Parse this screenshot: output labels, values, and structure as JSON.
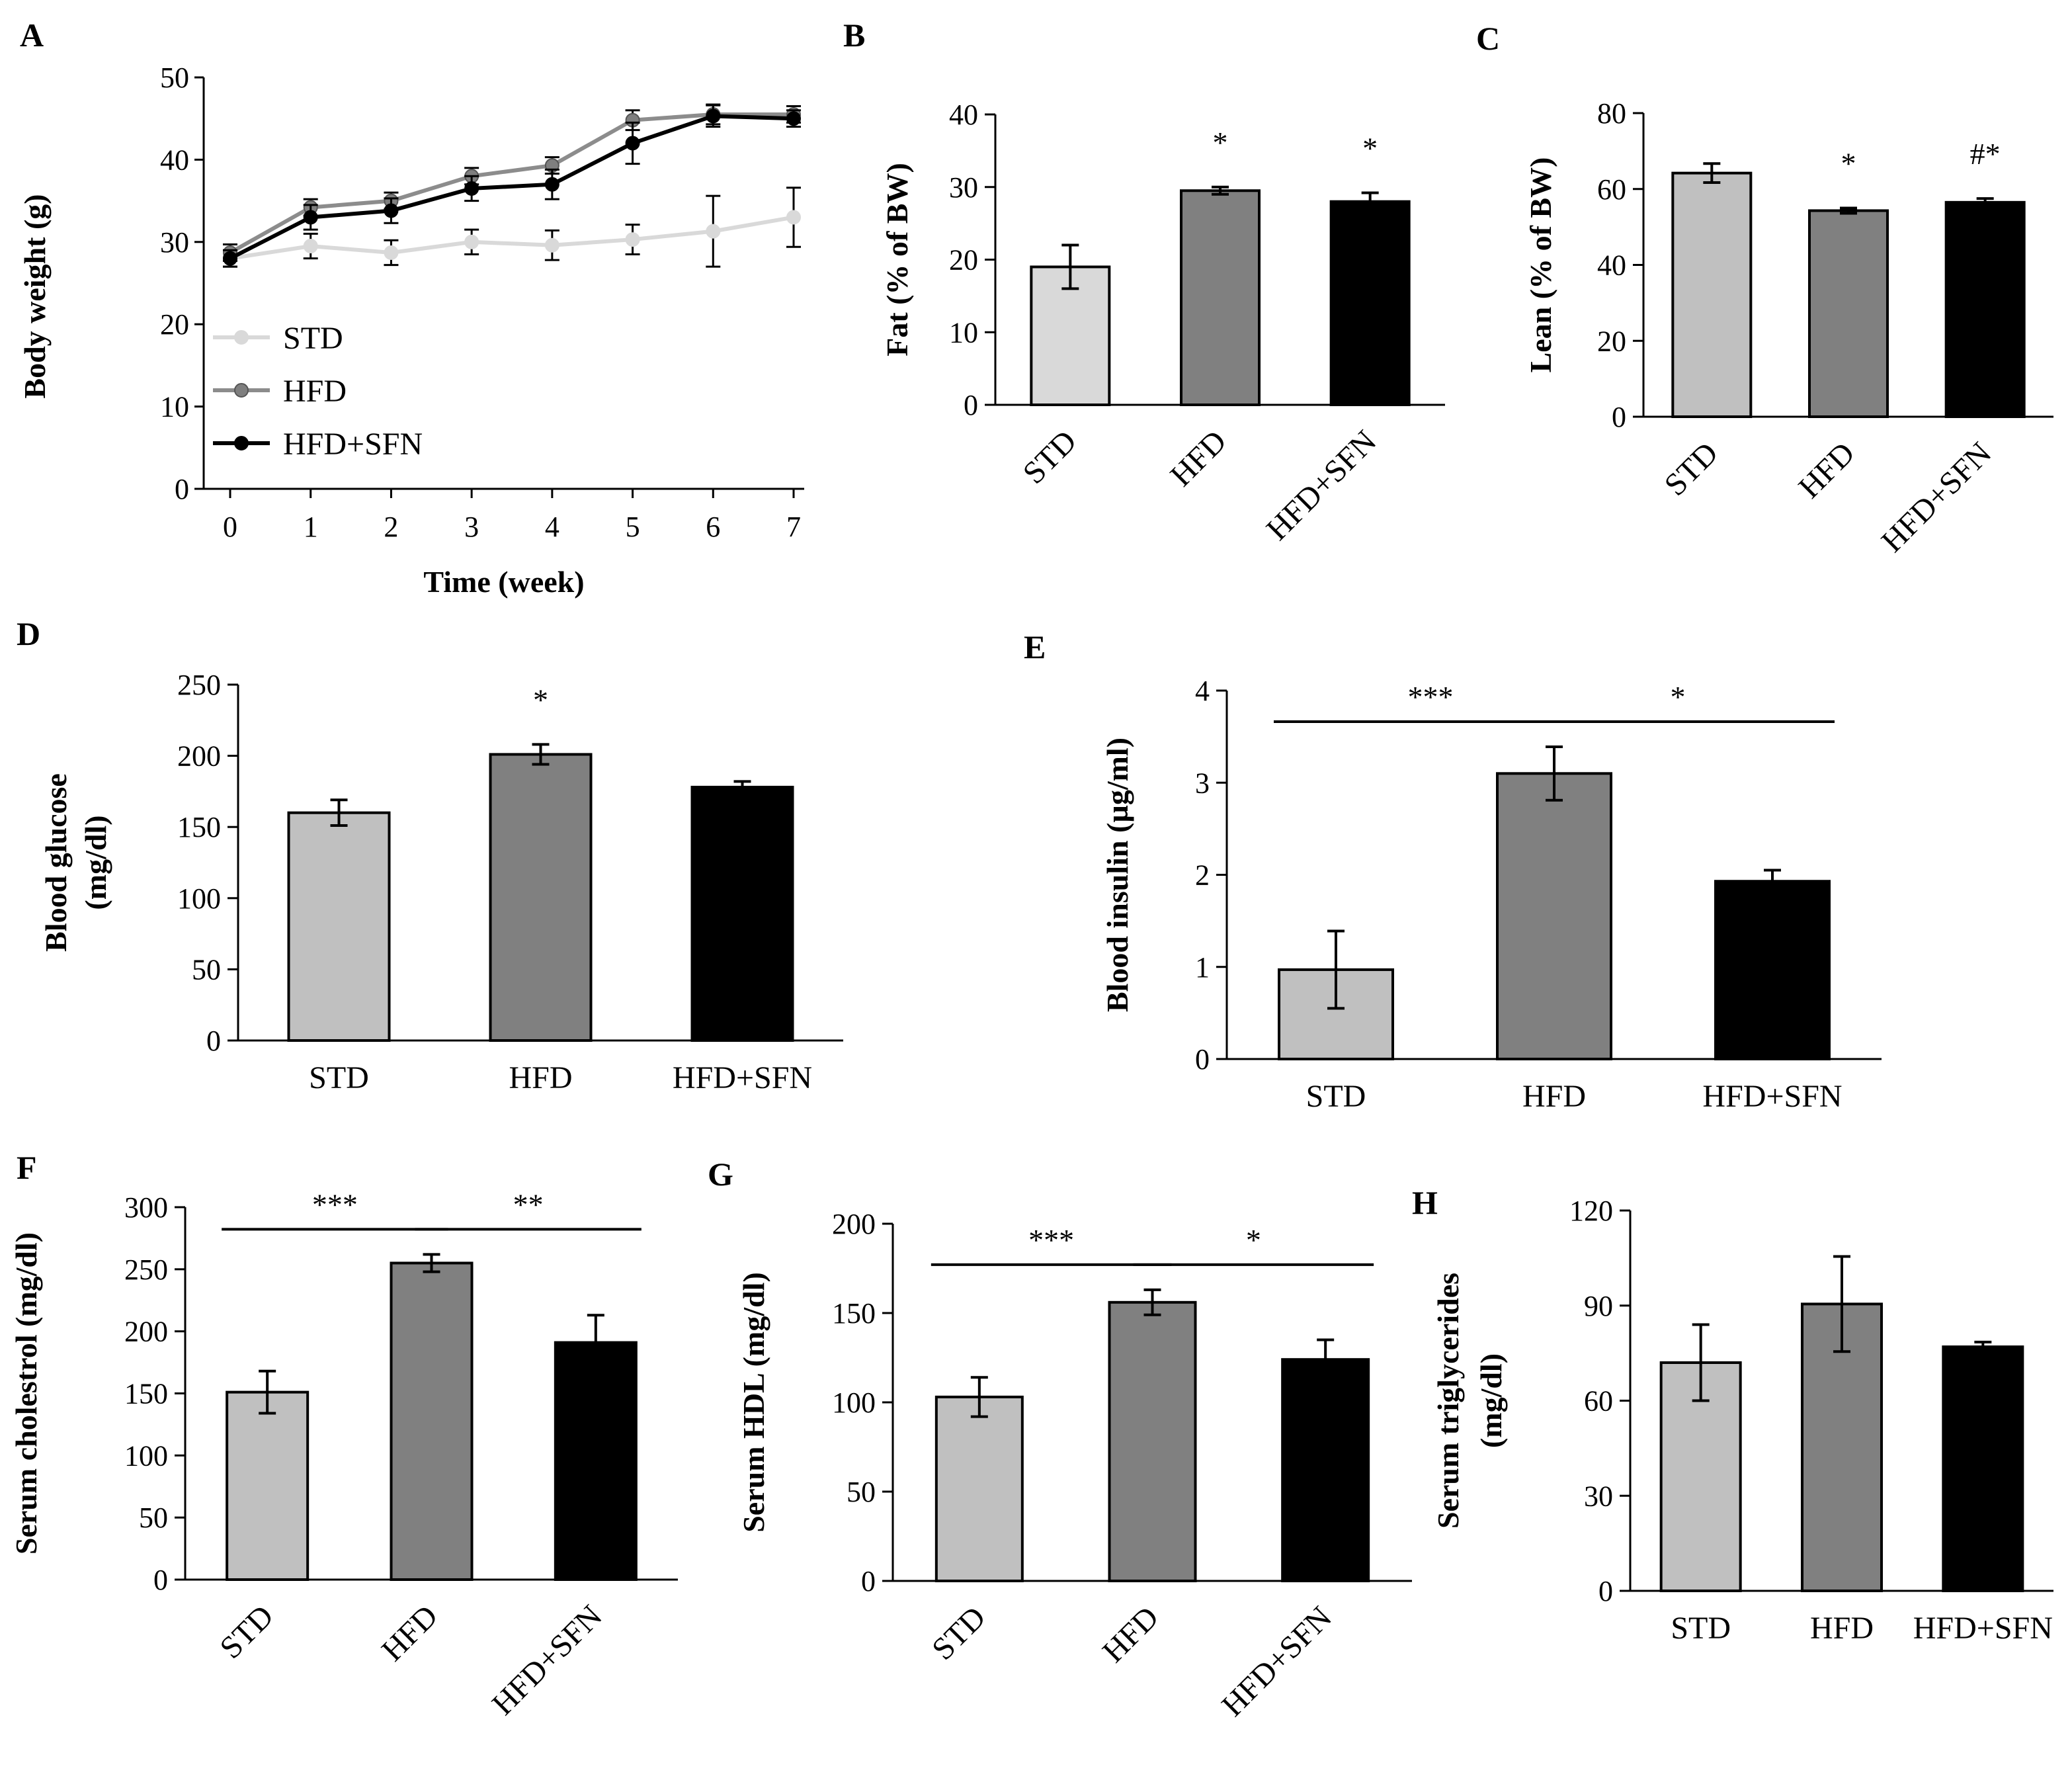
{
  "colors": {
    "STD": "#c0c0c0",
    "HFD": "#808080",
    "HFD+SFN": "#000000",
    "STD_line": "#d9d9d9",
    "HFD_line": "#8c8c8c",
    "HFD+SFN_line": "#000000",
    "STD_fill_B": "#d9d9d9"
  },
  "chart_data": [
    {
      "panel": "A",
      "type": "line",
      "xlabel": "Time (week)",
      "ylabel": "Body weight (g)",
      "x": [
        0,
        1,
        2,
        3,
        4,
        5,
        6,
        7
      ],
      "xticks": [
        "0",
        "1",
        "2",
        "3",
        "4",
        "5",
        "6",
        "7"
      ],
      "ylim": [
        0,
        50
      ],
      "yticks": [
        "0",
        "10",
        "20",
        "30",
        "40",
        "50"
      ],
      "legend_position": "bottom-left",
      "series": [
        {
          "name": "STD",
          "values": [
            28,
            29.5,
            28.7,
            30,
            29.6,
            30.3,
            31.3,
            33
          ],
          "errors": [
            1,
            1.5,
            1.5,
            1.5,
            1.8,
            1.8,
            4.3,
            3.6
          ]
        },
        {
          "name": "HFD",
          "values": [
            28.7,
            34.2,
            35,
            38,
            39.3,
            44.8,
            45.5,
            45.5
          ],
          "errors": [
            1,
            1,
            1,
            1,
            1,
            1.2,
            1.2,
            1
          ]
        },
        {
          "name": "HFD+SFN",
          "values": [
            28,
            33,
            33.8,
            36.5,
            37,
            42,
            45.3,
            45
          ],
          "errors": [
            1,
            1.5,
            1.5,
            1.5,
            1.8,
            2.5,
            1.3,
            1
          ]
        }
      ]
    },
    {
      "panel": "B",
      "type": "bar",
      "ylabel": "Fat (% of BW)",
      "categories": [
        "STD",
        "HFD",
        "HFD+SFN"
      ],
      "values": [
        19,
        29.5,
        28
      ],
      "errors": [
        3,
        0.5,
        1.2
      ],
      "ylim": [
        0,
        40
      ],
      "yticks": [
        "0",
        "10",
        "20",
        "30",
        "40"
      ],
      "annotations": [
        "",
        "*",
        "*"
      ]
    },
    {
      "panel": "C",
      "type": "bar",
      "ylabel": "Lean (% of BW)",
      "categories": [
        "STD",
        "HFD",
        "HFD+SFN"
      ],
      "values": [
        64.2,
        54.3,
        56.5
      ],
      "errors": [
        2.5,
        0.7,
        1
      ],
      "ylim": [
        0,
        80
      ],
      "yticks": [
        "0",
        "20",
        "40",
        "60",
        "80"
      ],
      "annotations": [
        "",
        "*",
        "#*"
      ]
    },
    {
      "panel": "D",
      "type": "bar",
      "ylabel": "Blood glucose (mg/dl)",
      "categories": [
        "STD",
        "HFD",
        "HFD+SFN"
      ],
      "values": [
        160,
        201,
        178
      ],
      "errors": [
        9,
        7,
        4
      ],
      "ylim": [
        0,
        250
      ],
      "yticks": [
        "0",
        "50",
        "100",
        "150",
        "200",
        "250"
      ],
      "annotations": [
        "",
        "*",
        ""
      ]
    },
    {
      "panel": "E",
      "type": "bar",
      "ylabel": "Blood insulin (µg/ml)",
      "categories": [
        "STD",
        "HFD",
        "HFD+SFN"
      ],
      "values": [
        0.97,
        3.1,
        1.93
      ],
      "errors": [
        0.42,
        0.29,
        0.12
      ],
      "ylim": [
        0,
        4
      ],
      "yticks": [
        "0",
        "1",
        "2",
        "3",
        "4"
      ],
      "brackets": [
        {
          "from": 0,
          "to": 1,
          "label": "***"
        },
        {
          "from": 1,
          "to": 2,
          "label": "*"
        }
      ]
    },
    {
      "panel": "F",
      "type": "bar",
      "ylabel": "Serum cholestrol (mg/dl)",
      "categories": [
        "STD",
        "HFD",
        "HFD+SFN"
      ],
      "values": [
        151,
        255,
        191
      ],
      "errors": [
        17,
        7,
        22
      ],
      "ylim": [
        0,
        300
      ],
      "yticks": [
        "0",
        "50",
        "100",
        "150",
        "200",
        "250",
        "300"
      ],
      "brackets": [
        {
          "from": 0,
          "to": 1,
          "label": "***"
        },
        {
          "from": 1,
          "to": 2,
          "label": "**"
        }
      ]
    },
    {
      "panel": "G",
      "type": "bar",
      "ylabel": "Serum HDL (mg/dl)",
      "categories": [
        "STD",
        "HFD",
        "HFD+SFN"
      ],
      "values": [
        103,
        156,
        124
      ],
      "errors": [
        11,
        7,
        11
      ],
      "ylim": [
        0,
        200
      ],
      "yticks": [
        "0",
        "50",
        "100",
        "150",
        "200"
      ],
      "brackets": [
        {
          "from": 0,
          "to": 1,
          "label": "***"
        },
        {
          "from": 1,
          "to": 2,
          "label": "*"
        }
      ]
    },
    {
      "panel": "H",
      "type": "bar",
      "ylabel": "Serum triglycerides (mg/dl)",
      "categories": [
        "STD",
        "HFD",
        "HFD+SFN"
      ],
      "values": [
        72,
        90.5,
        77
      ],
      "errors": [
        12,
        15,
        1.5
      ],
      "ylim": [
        0,
        120
      ],
      "yticks": [
        "0",
        "30",
        "60",
        "90",
        "120"
      ]
    }
  ]
}
